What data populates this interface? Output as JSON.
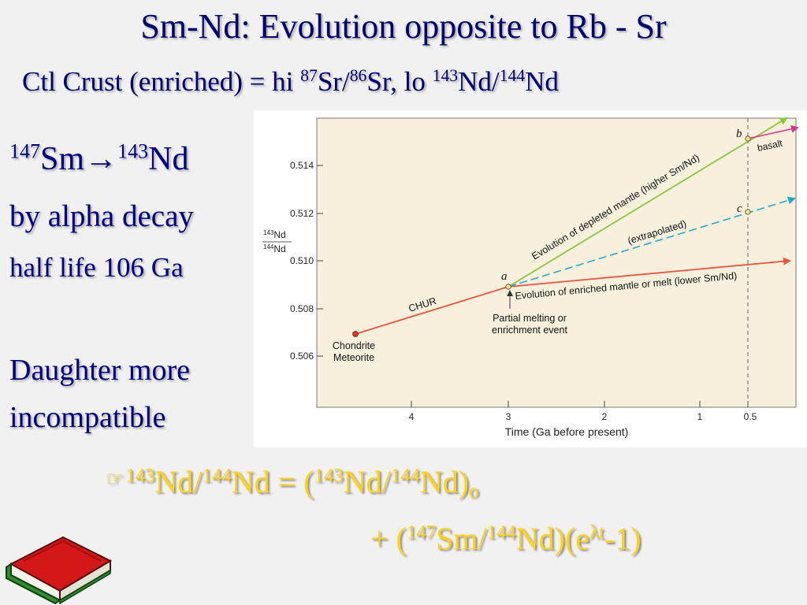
{
  "slide": {
    "title": "Sm-Nd: Evolution opposite to Rb - Sr",
    "subtitle": {
      "prefix": "Ctl Crust (enriched) = hi ",
      "sup1": "87",
      "t1": "Sr/",
      "sup2": "86",
      "t2": "Sr, lo ",
      "sup3": "143",
      "t3": "Nd/",
      "sup4": "144",
      "t4": "Nd"
    },
    "decay": {
      "sup1": "147",
      "t1": "Sm",
      "arrow": "→",
      "sup2": "143",
      "t2": "Nd"
    },
    "alpha_decay": "by alpha decay",
    "half_life": "half life 106 Ga",
    "daughter_1": "Daughter more",
    "daughter_2": "incompatible",
    "equation": {
      "l1_sup1": "143",
      "l1_t1": "Nd/",
      "l1_sup2": "144",
      "l1_t2": "Nd = (",
      "l1_sup3": "143",
      "l1_t3": "Nd/",
      "l1_sup4": "144",
      "l1_t4": "Nd)",
      "l1_sub": "o",
      "l2_t1": "+ (",
      "l2_sup1": "147",
      "l2_t2": "Sm/",
      "l2_sup2": "144",
      "l2_t3": "Nd)(e",
      "l2_sup3": "λt",
      "l2_t4": "-1)"
    },
    "bullet_icon": "pointing-hand-icon",
    "book_icon": "red-book-icon"
  },
  "figure": {
    "y_label_num": "143Nd",
    "y_label_den": "144Nd",
    "x_label": "Time (Ga before present)",
    "x_ticks": [
      "4",
      "3",
      "2",
      "1",
      "0.5"
    ],
    "y_ticks": [
      "0.514",
      "0.512",
      "0.510",
      "0.508",
      "0.506"
    ],
    "lines": {
      "chur": "CHUR",
      "depleted": "Evolution of depleted mantle (higher Sm/Nd)",
      "extrapolated": "(extrapolated)",
      "enriched": "Evolution of enriched mantle or melt (lower Sm/Nd)",
      "basalt": "basalt"
    },
    "points": {
      "a": "a",
      "b": "b",
      "c": "c"
    },
    "annotations": {
      "chondrite_1": "Chondrite",
      "chondrite_2": "Meteorite",
      "partial_1": "Partial melting or",
      "partial_2": "enrichment event"
    },
    "colors": {
      "chur": "#e8553b",
      "depleted": "#8cc63f",
      "extrapolated": "#2aa6c8",
      "enriched": "#e8553b",
      "basalt": "#d6358c",
      "plot_bg": "#f7f0dc"
    }
  }
}
